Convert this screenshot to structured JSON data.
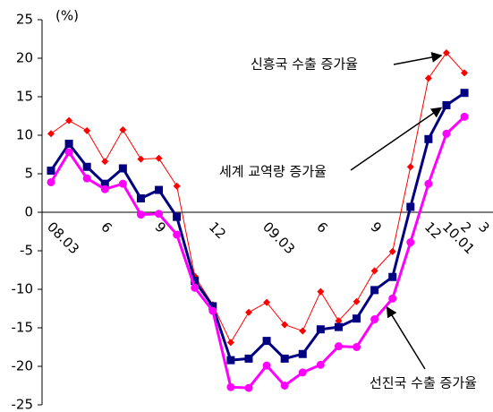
{
  "chart_data": {
    "type": "line",
    "unit_label": "(%)",
    "categories": [
      "08.03",
      null,
      null,
      "6",
      null,
      null,
      "9",
      null,
      null,
      "12",
      null,
      null,
      "09.03",
      null,
      null,
      "6",
      null,
      null,
      "9",
      null,
      null,
      "12",
      "10.01",
      "2",
      "3"
    ],
    "series": [
      {
        "name": "신흥국 수출 증가율",
        "color": "#ff0000",
        "marker": "diamond",
        "values": [
          10.2,
          11.9,
          10.6,
          6.6,
          10.7,
          6.9,
          7.0,
          3.4,
          -8.3,
          -12.0,
          -16.9,
          -13.0,
          -11.7,
          -14.6,
          -15.4,
          -10.3,
          -14.1,
          -11.6,
          -7.6,
          -5.1,
          5.9,
          17.4,
          20.7,
          18.1,
          null
        ]
      },
      {
        "name": "세계 교역량 증가율",
        "color": "#000080",
        "marker": "square",
        "values": [
          5.4,
          8.9,
          5.9,
          3.7,
          5.7,
          1.8,
          2.9,
          -0.6,
          -8.9,
          -12.2,
          -19.2,
          -19.0,
          -16.7,
          -19.0,
          -18.4,
          -15.2,
          -14.9,
          -13.8,
          -10.1,
          -8.4,
          0.7,
          9.5,
          13.9,
          15.5,
          null
        ]
      },
      {
        "name": "선진국 수출 증가율",
        "color": "#ff00ff",
        "marker": "circle",
        "values": [
          3.9,
          7.8,
          4.4,
          3.0,
          3.7,
          -0.3,
          -0.2,
          -2.9,
          -9.8,
          -12.8,
          -22.7,
          -22.8,
          -19.9,
          -22.5,
          -20.8,
          -19.8,
          -17.4,
          -17.5,
          -13.9,
          -11.2,
          -3.9,
          3.7,
          10.2,
          12.4,
          null
        ]
      }
    ],
    "ylim": [
      -25,
      25
    ],
    "yticks": [
      -25,
      -20,
      -15,
      -10,
      -5,
      0,
      5,
      10,
      15,
      20,
      25
    ]
  }
}
